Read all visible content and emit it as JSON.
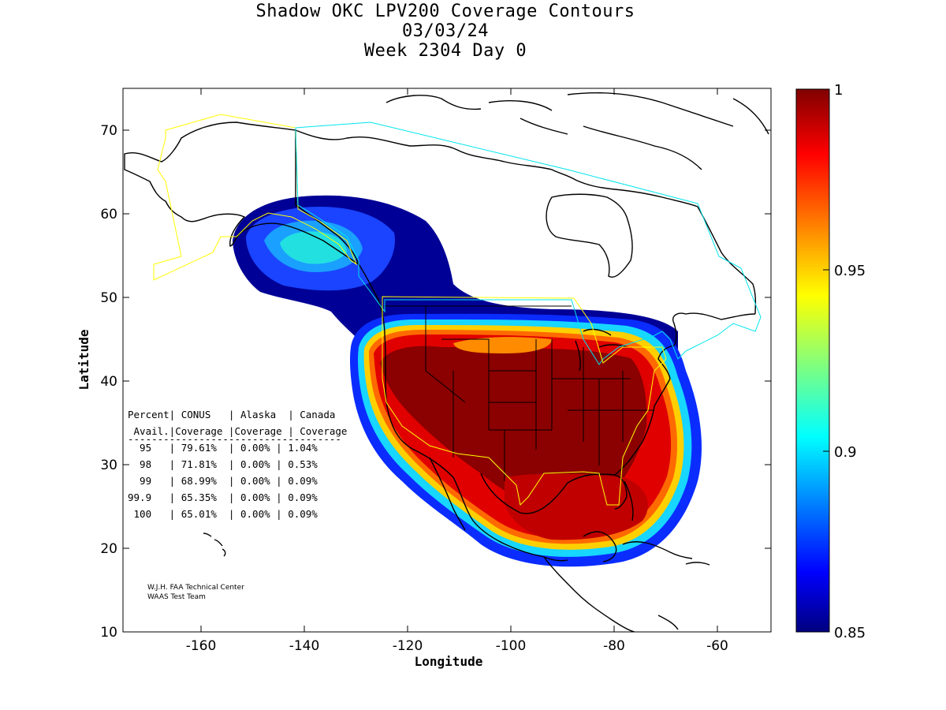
{
  "header": {
    "title_line1": "Shadow OKC LPV200 Coverage Contours",
    "title_line2": "03/03/24",
    "title_line3": "Week 2304 Day 0"
  },
  "axes": {
    "xlabel": "Longitude",
    "ylabel": "Latitude",
    "xlim": [
      -175,
      -50
    ],
    "ylim": [
      10,
      75
    ],
    "xticks": [
      "-160",
      "-140",
      "-120",
      "-100",
      "-80",
      "-60"
    ],
    "yticks": [
      "10",
      "20",
      "30",
      "40",
      "50",
      "60",
      "70"
    ]
  },
  "colorbar": {
    "min": 0.85,
    "max": 1,
    "ticks": [
      "1",
      "0.95",
      "0.9",
      "0.85"
    ],
    "colormap": "jet"
  },
  "table": {
    "header1": "Percent| CONUS   | Alaska  | Canada",
    "header2": " Avail.|Coverage |Coverage | Coverage",
    "divider": "------------------------------------",
    "rows": [
      "  95   | 79.61%  | 0.00% | 1.04%",
      "  98   | 71.81%  | 0.00% | 0.53%",
      "  99   | 68.99%  | 0.00% | 0.09%",
      "99.9   | 65.35%  | 0.00% | 0.09%",
      " 100   | 65.01%  | 0.00% | 0.09%"
    ]
  },
  "credit": {
    "line1": "W.J.H. FAA Technical Center",
    "line2": "WAAS Test Team"
  },
  "colors": {
    "boundary_yellow": "#ffff00",
    "boundary_cyan": "#00e5ee",
    "coastline": "#000000"
  }
}
